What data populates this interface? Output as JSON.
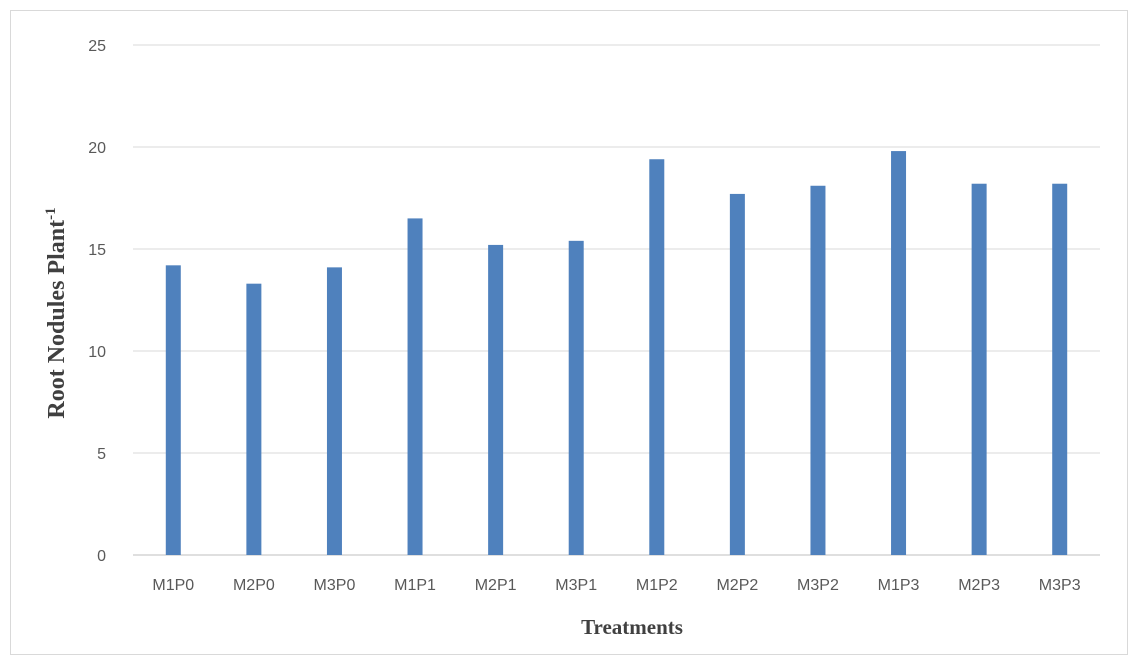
{
  "chart_data": {
    "type": "bar",
    "categories": [
      "M1P0",
      "M2P0",
      "M3P0",
      "M1P1",
      "M2P1",
      "M3P1",
      "M1P2",
      "M2P2",
      "M3P2",
      "M1P3",
      "M2P3",
      "M3P3"
    ],
    "values": [
      14.2,
      13.3,
      14.1,
      16.5,
      15.2,
      15.4,
      19.4,
      17.7,
      18.1,
      19.8,
      18.2,
      18.2
    ],
    "title": "",
    "xlabel": "Treatments",
    "ylabel_main": "Root Nodules Plant",
    "ylabel_sup": "-1",
    "ylim": [
      0,
      25
    ],
    "yticks": [
      0,
      5,
      10,
      15,
      20,
      25
    ],
    "grid": true,
    "legend": false,
    "bar_color": "#4f81bd"
  }
}
